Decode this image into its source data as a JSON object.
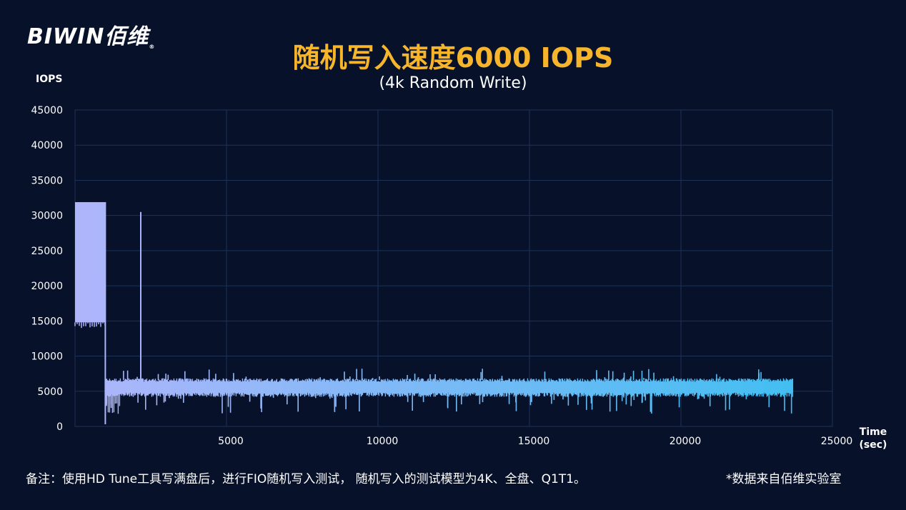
{
  "logo": {
    "text": "BIWIN佰维",
    "reg": "®"
  },
  "chart_data": {
    "type": "line",
    "title": "随机写入速度6000 IOPS",
    "subtitle": "(4k Random Write)",
    "ylabel": "IOPS",
    "xlabel": "Time",
    "xlabel_unit": "(sec)",
    "xlim": [
      0,
      25000
    ],
    "ylim": [
      0,
      45000
    ],
    "x_ticks": [
      "5000",
      "10000",
      "15000",
      "20000",
      "25000"
    ],
    "y_ticks": [
      "0",
      "5000",
      "10000",
      "15000",
      "20000",
      "25000",
      "30000",
      "35000",
      "40000",
      "45000"
    ],
    "grid": true,
    "series": [
      {
        "segments": [
          {
            "x_start": 0,
            "x_end": 1000,
            "y_low": 14800,
            "y_high": 31900
          },
          {
            "x_start": 1000,
            "x_end": 23700,
            "y_low": 4800,
            "y_high": 6600
          }
        ],
        "spikes": [
          {
            "x": 2170,
            "y": 30500
          },
          {
            "x": 1000,
            "y": 300
          }
        ],
        "approx_mean_steady": 6000
      }
    ],
    "colors": {
      "start": "#b0b5fb",
      "end": "#3dbff1"
    }
  },
  "footnote": "备注：使用HD Tune工具写满盘后，进行FIO随机写入测试， 随机写入的测试模型为4K、全盘、Q1T1。",
  "source": "*数据来自佰维实验室"
}
